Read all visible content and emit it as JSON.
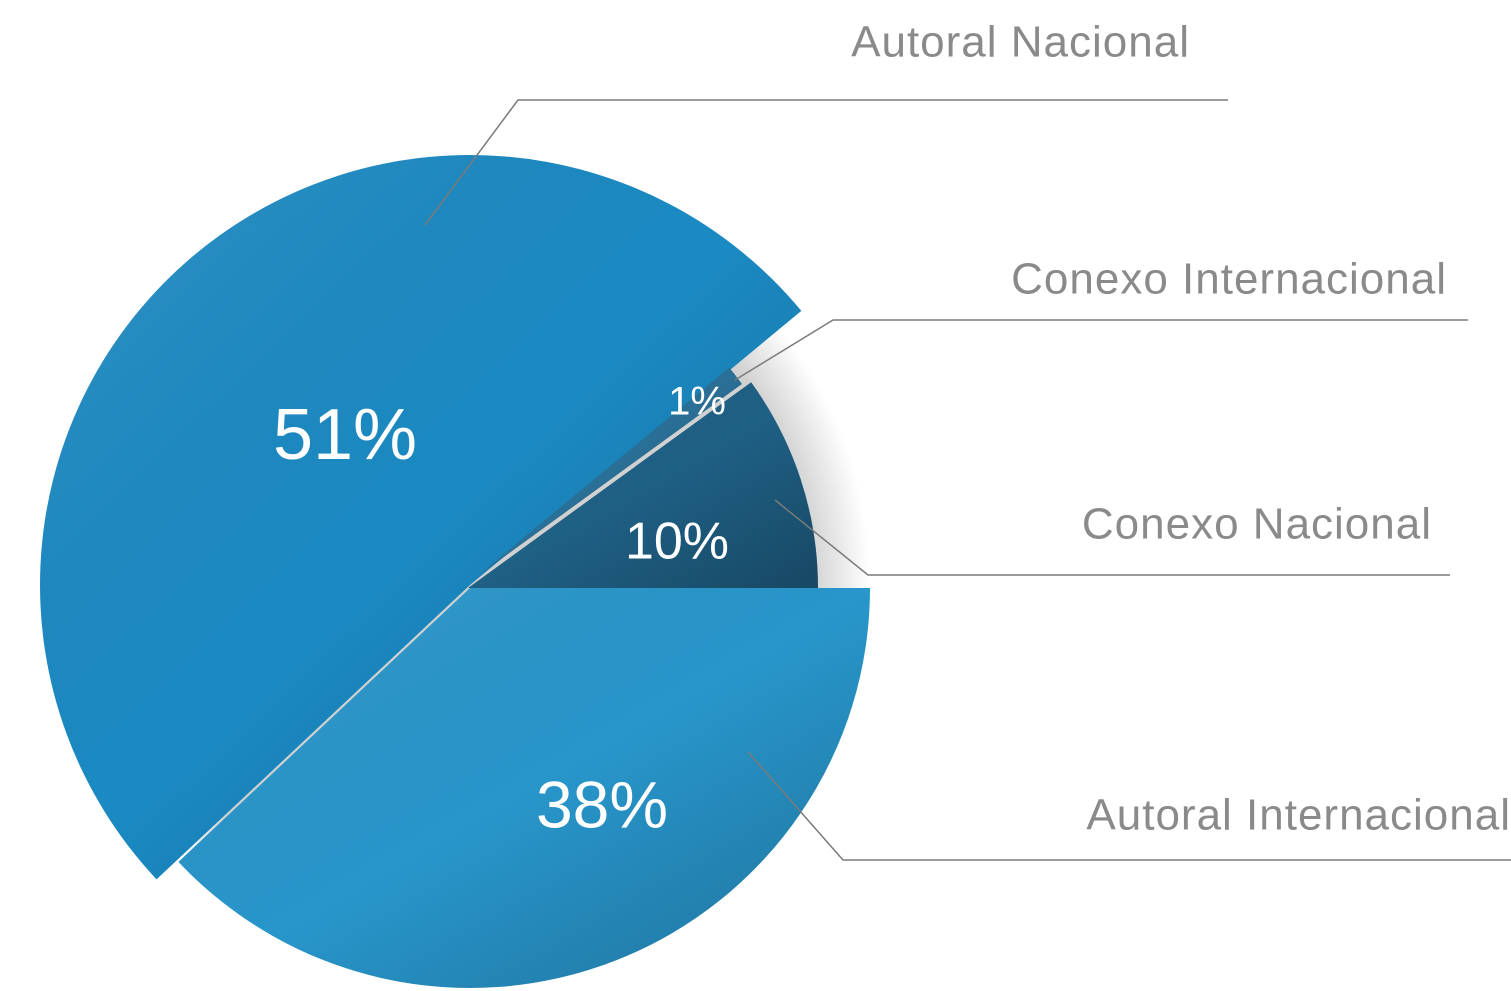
{
  "chart_data": {
    "type": "pie",
    "categories": [
      "Autoral Internacional",
      "Autoral Nacional",
      "Conexo Internacional",
      "Conexo Nacional"
    ],
    "values": [
      38,
      51,
      1,
      10
    ],
    "value_labels": [
      "38%",
      "51%",
      "1%",
      "10%"
    ],
    "colors": [
      "#2896cb",
      "#1b8ac3",
      "#2a6f96",
      "#1f6085"
    ]
  }
}
